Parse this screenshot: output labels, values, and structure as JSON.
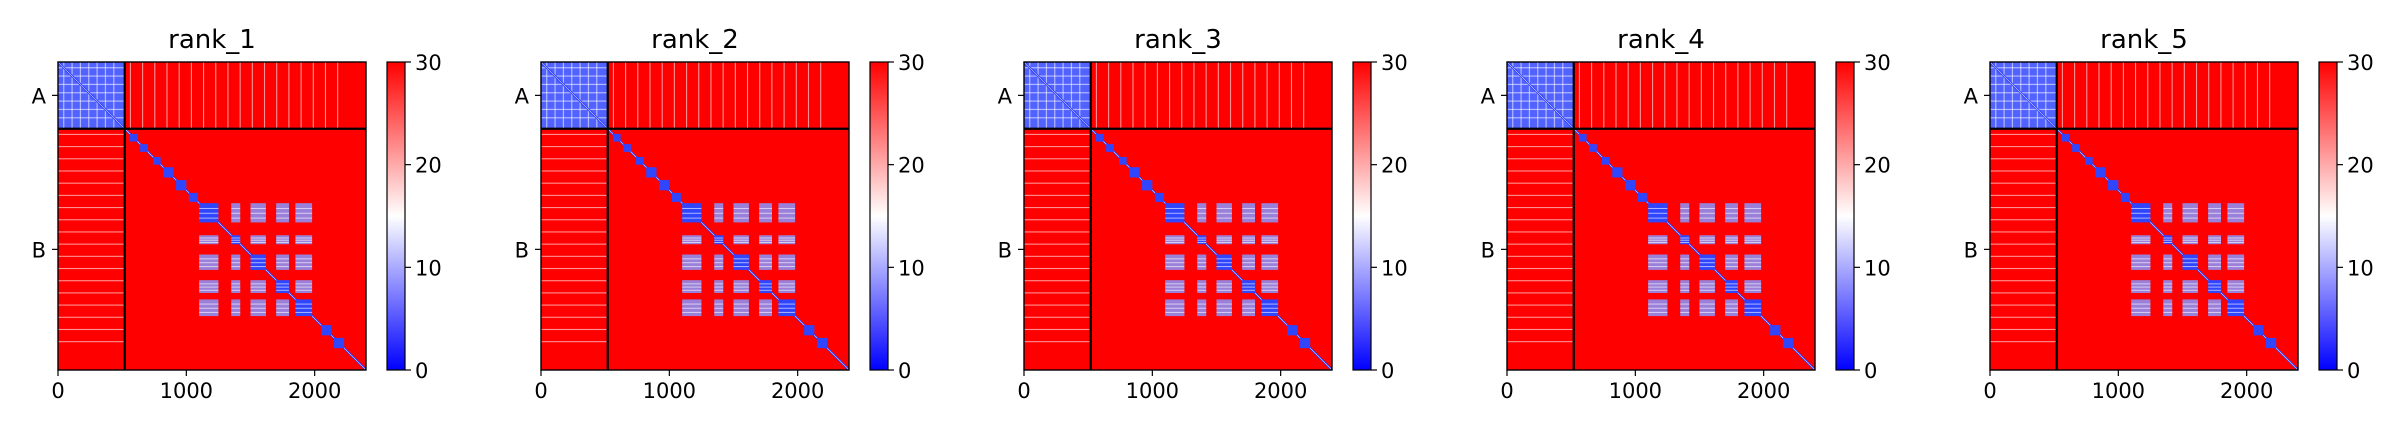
{
  "chart_data": [
    {
      "type": "heatmap",
      "title": "rank_1",
      "xticks": [
        0,
        1000,
        2000
      ],
      "yticks": [
        "A",
        "B"
      ],
      "xlim": [
        0,
        2400
      ],
      "chain_boundary": 520,
      "colorbar": {
        "ticks": [
          0,
          10,
          20,
          30
        ],
        "range": [
          0,
          30
        ],
        "colors": [
          "#0000ff",
          "#ffffff",
          "#ff0000"
        ]
      },
      "blocks": [
        [
          1100,
          1250
        ],
        [
          1350,
          1420
        ],
        [
          1500,
          1620
        ],
        [
          1700,
          1800
        ],
        [
          1850,
          1980
        ]
      ]
    },
    {
      "type": "heatmap",
      "title": "rank_2",
      "xticks": [
        0,
        1000,
        2000
      ],
      "yticks": [
        "A",
        "B"
      ],
      "xlim": [
        0,
        2400
      ],
      "chain_boundary": 520,
      "colorbar": {
        "ticks": [
          0,
          10,
          20,
          30
        ],
        "range": [
          0,
          30
        ],
        "colors": [
          "#0000ff",
          "#ffffff",
          "#ff0000"
        ]
      },
      "blocks": [
        [
          1100,
          1250
        ],
        [
          1350,
          1420
        ],
        [
          1500,
          1620
        ],
        [
          1700,
          1800
        ],
        [
          1850,
          1980
        ]
      ]
    },
    {
      "type": "heatmap",
      "title": "rank_3",
      "xticks": [
        0,
        1000,
        2000
      ],
      "yticks": [
        "A",
        "B"
      ],
      "xlim": [
        0,
        2400
      ],
      "chain_boundary": 520,
      "colorbar": {
        "ticks": [
          0,
          10,
          20,
          30
        ],
        "range": [
          0,
          30
        ],
        "colors": [
          "#0000ff",
          "#ffffff",
          "#ff0000"
        ]
      },
      "blocks": [
        [
          1100,
          1250
        ],
        [
          1350,
          1420
        ],
        [
          1500,
          1620
        ],
        [
          1700,
          1800
        ],
        [
          1850,
          1980
        ]
      ]
    },
    {
      "type": "heatmap",
      "title": "rank_4",
      "xticks": [
        0,
        1000,
        2000
      ],
      "yticks": [
        "A",
        "B"
      ],
      "xlim": [
        0,
        2400
      ],
      "chain_boundary": 520,
      "colorbar": {
        "ticks": [
          0,
          10,
          20,
          30
        ],
        "range": [
          0,
          30
        ],
        "colors": [
          "#0000ff",
          "#ffffff",
          "#ff0000"
        ]
      },
      "blocks": [
        [
          1100,
          1250
        ],
        [
          1350,
          1420
        ],
        [
          1500,
          1620
        ],
        [
          1700,
          1800
        ],
        [
          1850,
          1980
        ]
      ]
    },
    {
      "type": "heatmap",
      "title": "rank_5",
      "xticks": [
        0,
        1000,
        2000
      ],
      "yticks": [
        "A",
        "B"
      ],
      "xlim": [
        0,
        2400
      ],
      "chain_boundary": 520,
      "colorbar": {
        "ticks": [
          0,
          10,
          20,
          30
        ],
        "range": [
          0,
          30
        ],
        "colors": [
          "#0000ff",
          "#ffffff",
          "#ff0000"
        ]
      },
      "blocks": [
        [
          1100,
          1250
        ],
        [
          1350,
          1420
        ],
        [
          1500,
          1620
        ],
        [
          1700,
          1800
        ],
        [
          1850,
          1980
        ]
      ]
    }
  ]
}
